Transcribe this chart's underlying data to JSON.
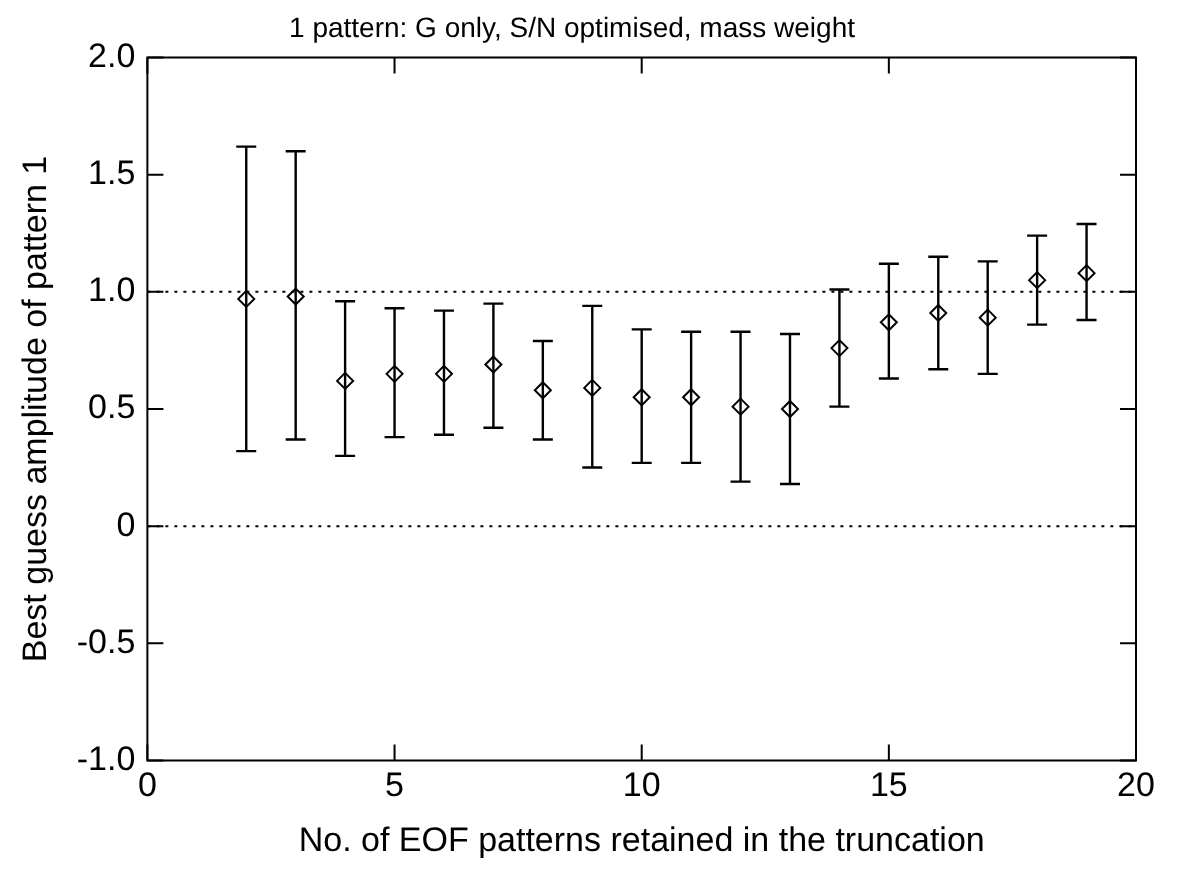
{
  "chart_data": {
    "type": "scatter",
    "title": "1 pattern: G only, S/N optimised, mass weight",
    "xlabel": "No. of EOF patterns retained in the truncation",
    "ylabel": "Best guess amplitude of pattern 1",
    "x": [
      2,
      3,
      4,
      5,
      6,
      7,
      8,
      9,
      10,
      11,
      12,
      13,
      14,
      15,
      16,
      17,
      18,
      19
    ],
    "series": [
      {
        "color": "#000000",
        "values": [
          0.97,
          0.98,
          0.62,
          0.65,
          0.65,
          0.69,
          0.58,
          0.59,
          0.55,
          0.55,
          0.51,
          0.5,
          0.76,
          0.87,
          0.91,
          0.89,
          1.05,
          1.08
        ],
        "errors": [
          [
            0.32,
            1.62
          ],
          [
            0.37,
            1.6
          ],
          [
            0.3,
            0.96
          ],
          [
            0.38,
            0.93
          ],
          [
            0.39,
            0.92
          ],
          [
            0.42,
            0.95
          ],
          [
            0.37,
            0.79
          ],
          [
            0.25,
            0.94
          ],
          [
            0.27,
            0.84
          ],
          [
            0.27,
            0.83
          ],
          [
            0.19,
            0.83
          ],
          [
            0.18,
            0.82
          ],
          [
            0.51,
            1.01
          ],
          [
            0.63,
            1.12
          ],
          [
            0.67,
            1.15
          ],
          [
            0.65,
            1.13
          ],
          [
            0.86,
            1.24
          ],
          [
            0.88,
            1.29
          ]
        ]
      }
    ],
    "marker": "diamond",
    "xlim": [
      0,
      20
    ],
    "xticks": [
      0,
      5,
      10,
      15,
      20
    ],
    "ylim": [
      -1.0,
      2.0
    ],
    "yticks": [
      {
        "value": -1,
        "label": "-1.0"
      },
      {
        "value": -0.5,
        "label": "-0.5"
      },
      {
        "value": 0,
        "label": "0"
      },
      {
        "value": 0.5,
        "label": "0.5"
      },
      {
        "value": 1,
        "label": "1.0"
      },
      {
        "value": 1.5,
        "label": "1.5"
      },
      {
        "value": 2,
        "label": "2.0"
      }
    ],
    "ref_lines": [
      {
        "axis": "y",
        "value": 1,
        "line_style": "dotted"
      },
      {
        "axis": "y",
        "value": 0,
        "line_style": "dotted"
      }
    ],
    "grid": false,
    "legend": false
  }
}
